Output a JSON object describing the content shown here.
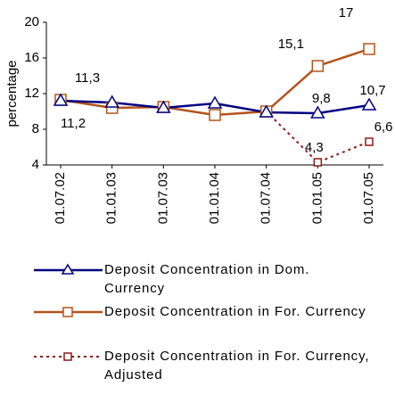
{
  "chart_data": {
    "type": "line",
    "y_label": "percentage",
    "categories": [
      "01.07.02",
      "01.01.03",
      "01.07.03",
      "01.01.04",
      "01.07.04",
      "01.01.05",
      "01.07.05"
    ],
    "series": [
      {
        "name": "Deposit Concentration in Dom. Currency",
        "color": "#000080",
        "marker": "triangle",
        "dash": false,
        "values": [
          11.2,
          11.0,
          10.4,
          10.9,
          9.9,
          9.8,
          10.7
        ],
        "value_labels": [
          "11,2",
          null,
          null,
          null,
          null,
          "9,8",
          "10,7"
        ]
      },
      {
        "name": "Deposit Concentration in For. Currency",
        "color": "#b4531c",
        "marker": "square",
        "dash": false,
        "values": [
          11.3,
          10.4,
          10.5,
          9.6,
          10.0,
          15.1,
          17
        ],
        "value_labels": [
          "11,3",
          null,
          null,
          null,
          null,
          "15,1",
          "17"
        ]
      },
      {
        "name": "Deposit Concentration in For. Currency, Adjusted",
        "color": "#8b1a1a",
        "marker": "small-square",
        "dash": true,
        "values": [
          11.3,
          10.4,
          10.5,
          9.6,
          10.0,
          4.3,
          6.6
        ],
        "value_labels": [
          null,
          null,
          null,
          null,
          null,
          "4,3",
          "6,6"
        ]
      }
    ],
    "ylim": [
      4,
      20
    ],
    "yticks": [
      4,
      8,
      12,
      16,
      20
    ],
    "grid": false,
    "legend": "bottom"
  }
}
